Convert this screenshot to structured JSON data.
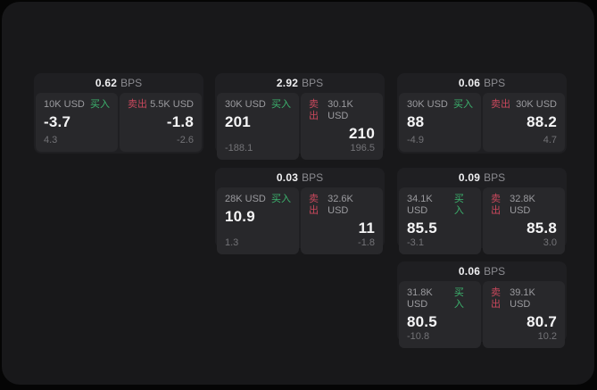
{
  "theme": {
    "page_bg": "#050505",
    "window_bg": "#18181a",
    "card_bg": "#1f1f22",
    "panel_bg": "#28282b",
    "text_primary": "#f5f5f6",
    "text_label": "#9b9b9f",
    "text_sub": "#737377",
    "buy_color": "#3cb46e",
    "sell_color": "#c9485c"
  },
  "labels": {
    "bps_unit": "BPS",
    "buy": "买入",
    "sell": "卖出"
  },
  "cards": [
    {
      "bps": "0.62",
      "buy": {
        "amount": "10K USD",
        "value": "-3.7",
        "sub": "4.3"
      },
      "sell": {
        "amount": "5.5K USD",
        "value": "-1.8",
        "sub": "-2.6"
      }
    },
    {
      "bps": "2.92",
      "buy": {
        "amount": "30K USD",
        "value": "201",
        "sub": "-188.1"
      },
      "sell": {
        "amount": "30.1K USD",
        "value": "210",
        "sub": "196.5"
      }
    },
    {
      "bps": "0.06",
      "buy": {
        "amount": "30K USD",
        "value": "88",
        "sub": "-4.9"
      },
      "sell": {
        "amount": "30K USD",
        "value": "88.2",
        "sub": "4.7"
      }
    },
    {
      "bps": "0.03",
      "buy": {
        "amount": "28K USD",
        "value": "10.9",
        "sub": "1.3"
      },
      "sell": {
        "amount": "32.6K USD",
        "value": "11",
        "sub": "-1.8"
      }
    },
    {
      "bps": "0.09",
      "buy": {
        "amount": "34.1K USD",
        "value": "85.5",
        "sub": "-3.1"
      },
      "sell": {
        "amount": "32.8K USD",
        "value": "85.8",
        "sub": "3.0"
      }
    },
    {
      "bps": "0.06",
      "buy": {
        "amount": "31.8K USD",
        "value": "80.5",
        "sub": "-10.8"
      },
      "sell": {
        "amount": "39.1K USD",
        "value": "80.7",
        "sub": "10.2"
      }
    }
  ]
}
